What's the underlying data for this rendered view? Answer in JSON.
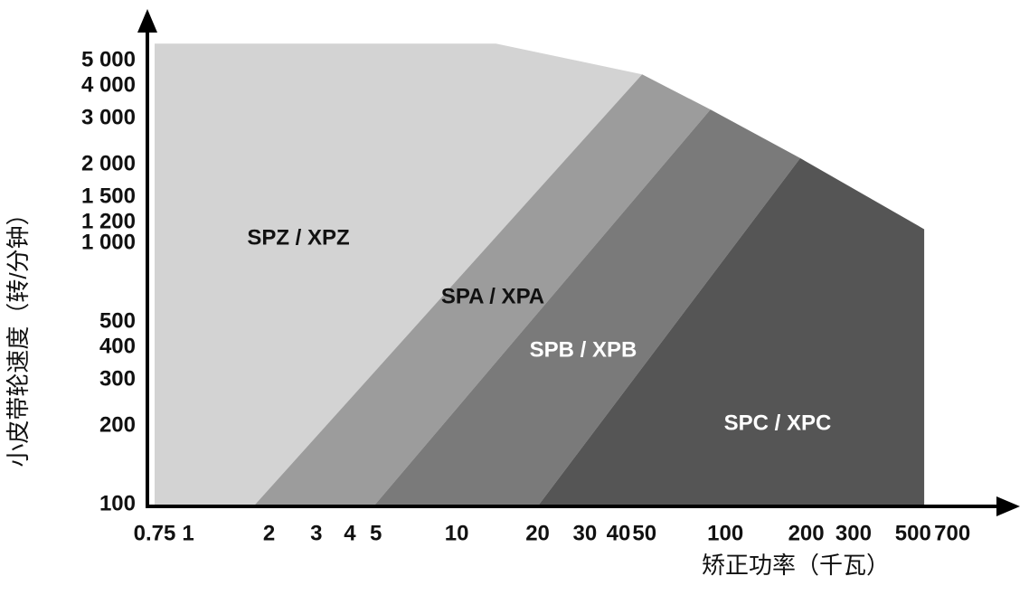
{
  "chart_data": {
    "type": "region",
    "x_label": "矫正功率（千瓦）",
    "y_label": "小皮带轮速度（转/分钟）",
    "xscale": "log",
    "yscale": "log",
    "xlim": [
      0.75,
      1250
    ],
    "ylim": [
      100,
      8000
    ],
    "xticks": [
      0.75,
      1,
      2,
      3,
      4,
      5,
      10,
      20,
      30,
      40,
      50,
      100,
      200,
      300,
      500,
      700
    ],
    "yticks": [
      100,
      200,
      300,
      400,
      500,
      {
        "value": 1000,
        "label": "1 000"
      },
      {
        "value": 1200,
        "label": "1 200"
      },
      {
        "value": 1500,
        "label": "1 500"
      },
      {
        "value": 2000,
        "label": "2 000"
      },
      {
        "value": 3000,
        "label": "3 000"
      },
      {
        "value": 4000,
        "label": "4 000"
      },
      {
        "value": 5000,
        "label": "5 000"
      }
    ],
    "series": [
      {
        "name": "SPZ / XPZ",
        "color": "#d3d3d3",
        "x": [
          0.75,
          0.75,
          14,
          49,
          1.75
        ],
        "y": [
          100,
          5900,
          5900,
          4500,
          100
        ]
      },
      {
        "name": "SPA / XPA",
        "color": "#9c9c9c",
        "x": [
          1.75,
          49,
          88,
          4.9
        ],
        "y": [
          100,
          4500,
          3300,
          100
        ]
      },
      {
        "name": "SPB / XPB",
        "color": "#7a7a7a",
        "x": [
          4.9,
          88,
          190,
          20
        ],
        "y": [
          100,
          3300,
          2150,
          100
        ]
      },
      {
        "name": "SPC / XPC",
        "color": "#555555",
        "x": [
          20,
          190,
          550,
          550
        ],
        "y": [
          100,
          2150,
          1150,
          100
        ]
      }
    ]
  }
}
